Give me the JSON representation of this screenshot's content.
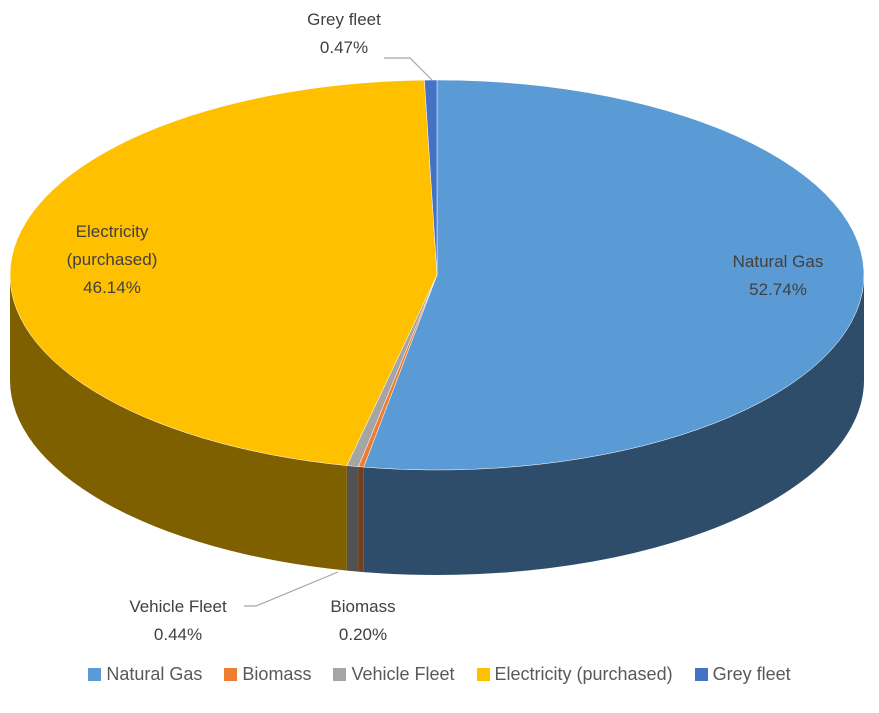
{
  "chart_data": {
    "type": "pie",
    "categories": [
      "Natural Gas",
      "Biomass",
      "Vehicle Fleet",
      "Electricity (purchased)",
      "Grey fleet"
    ],
    "values": [
      52.74,
      0.2,
      0.44,
      46.14,
      0.47
    ],
    "value_labels": [
      "52.74%",
      "0.20%",
      "0.44%",
      "46.14%",
      "0.47%"
    ],
    "colors": [
      "#5b9bd5",
      "#ed7d31",
      "#a5a5a5",
      "#ffc000",
      "#4472c4"
    ],
    "legend": "bottom"
  }
}
